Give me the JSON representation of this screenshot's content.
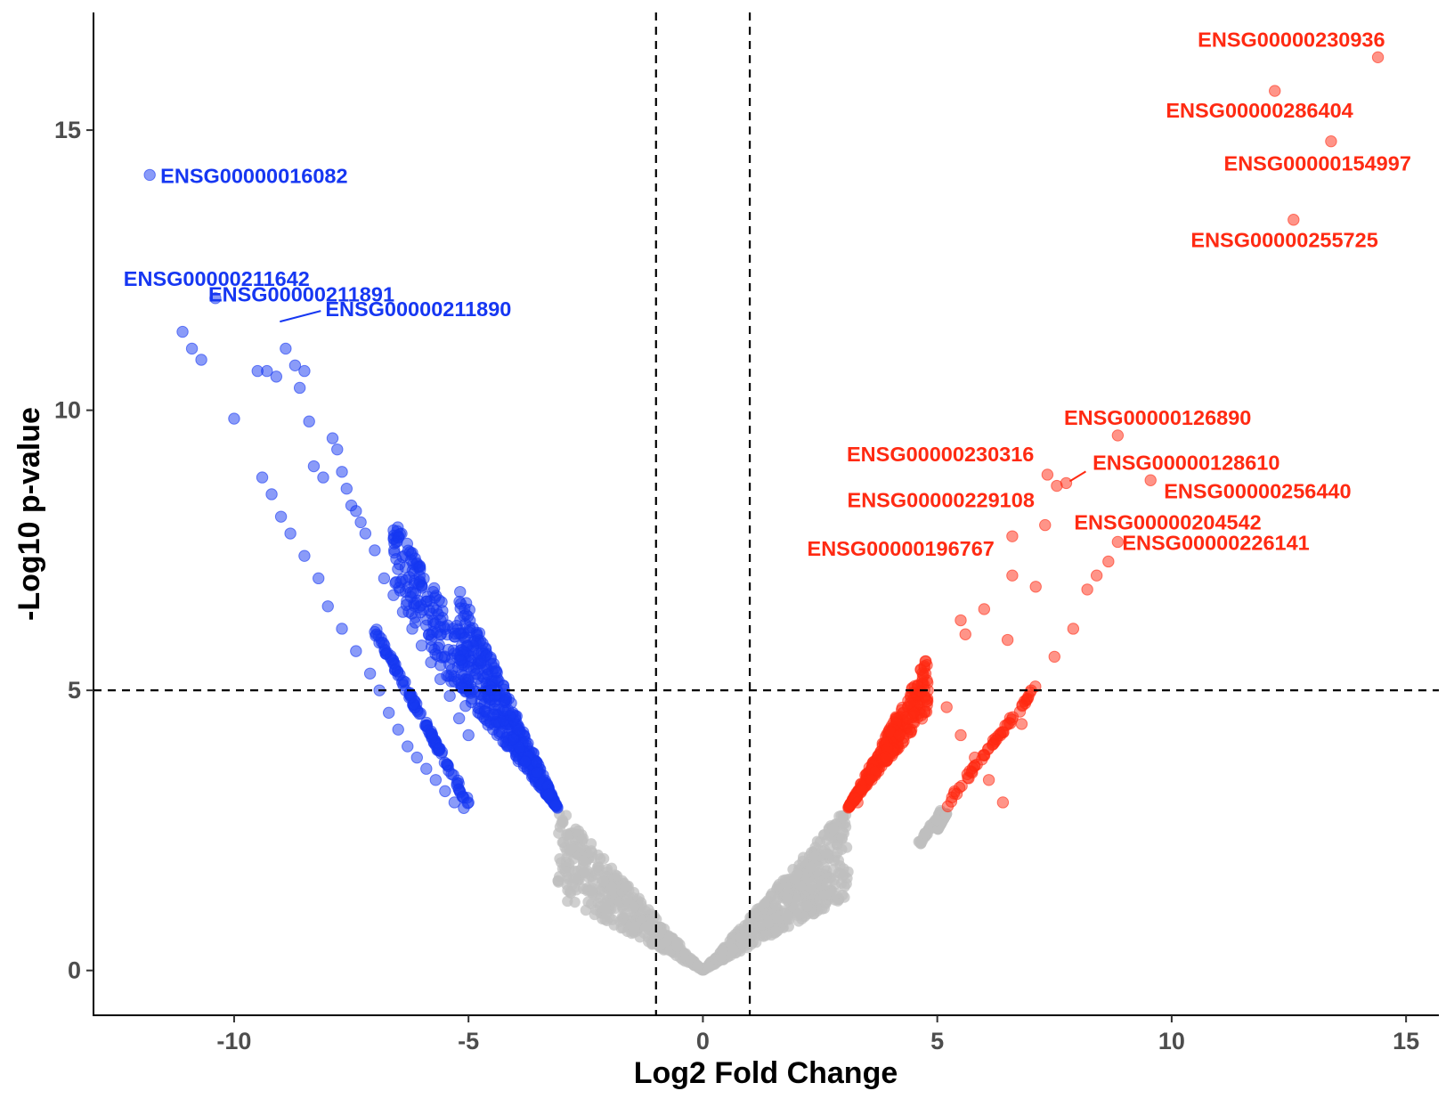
{
  "chart_data": {
    "type": "scatter",
    "title": "",
    "xlabel": "Log2 Fold Change",
    "ylabel": "-Log10 p-value",
    "xlim": [
      -13,
      15.7
    ],
    "ylim": [
      -0.8,
      17.1
    ],
    "xticks": [
      -10,
      -5,
      0,
      5,
      10,
      15
    ],
    "yticks": [
      0,
      5,
      10,
      15
    ],
    "grid": false,
    "legend": "none",
    "thresholds": {
      "x": [
        -1,
        1
      ],
      "y": 5
    },
    "colors": {
      "up": "#ff2a12",
      "down": "#1637f2",
      "ns": "#bfbfbf"
    },
    "point_groups": [
      {
        "group": "down",
        "x": [
          -11.8,
          -11.1,
          -10.9,
          -10.4,
          -10.7,
          -10.0,
          -9.5,
          -9.3,
          -9.1,
          -8.9,
          -8.7,
          -8.6,
          -8.5,
          -8.4,
          -8.3,
          -8.1,
          -7.9,
          -7.8,
          -7.7,
          -7.6,
          -7.5,
          -7.4,
          -7.3,
          -7.2,
          -7.0,
          -6.8,
          -6.6,
          -6.4,
          -6.2,
          -6.0,
          -5.8,
          -5.6,
          -5.4,
          -5.2,
          -5.0,
          -9.4,
          -9.2,
          -9.0,
          -8.8,
          -8.5,
          -8.2,
          -8.0,
          -7.7,
          -7.4,
          -7.1,
          -6.9,
          -6.7,
          -6.5,
          -6.3,
          -6.1,
          -5.9,
          -5.7,
          -5.5,
          -5.3,
          -5.1
        ],
        "y": [
          14.2,
          11.4,
          11.1,
          12.0,
          10.9,
          9.85,
          10.7,
          10.7,
          10.6,
          11.1,
          10.8,
          10.4,
          10.7,
          9.8,
          9.0,
          8.8,
          9.5,
          9.3,
          8.9,
          8.6,
          8.3,
          8.2,
          8.0,
          7.8,
          7.5,
          7.0,
          6.7,
          6.4,
          6.1,
          5.8,
          5.5,
          5.2,
          4.9,
          4.5,
          4.2,
          8.8,
          8.5,
          8.1,
          7.8,
          7.4,
          7.0,
          6.5,
          6.1,
          5.7,
          5.3,
          5.0,
          4.6,
          4.3,
          4.0,
          3.8,
          3.6,
          3.4,
          3.2,
          3.0,
          2.9
        ]
      },
      {
        "group": "up",
        "x": [
          14.4,
          12.2,
          13.4,
          12.6,
          8.85,
          7.35,
          7.55,
          7.75,
          9.55,
          7.3,
          8.85,
          6.6,
          8.65,
          6.6,
          7.1,
          6.0,
          5.5,
          5.6,
          6.5,
          7.5,
          7.9,
          8.2,
          8.4,
          4.8,
          4.5,
          4.2,
          3.9,
          3.6,
          3.3,
          5.2,
          5.5,
          5.8,
          6.1,
          6.4,
          6.8,
          7.0
        ],
        "y": [
          16.3,
          15.7,
          14.8,
          13.4,
          9.55,
          8.85,
          8.65,
          8.7,
          8.75,
          7.95,
          7.65,
          7.75,
          7.3,
          7.05,
          6.85,
          6.45,
          6.25,
          6.0,
          5.9,
          5.6,
          6.1,
          6.8,
          7.05,
          5.0,
          4.6,
          4.2,
          3.8,
          3.4,
          3.0,
          4.7,
          4.2,
          3.8,
          3.4,
          3.0,
          4.4,
          5.0
        ]
      }
    ],
    "labels": [
      {
        "text": "ENSG00000016082",
        "group": "down",
        "x": -11.8,
        "y": 14.2
      },
      {
        "text": "ENSG00000211642",
        "group": "down",
        "x": -10.4,
        "y": 12.0
      },
      {
        "text": "ENSG00000211890",
        "group": "down",
        "x": -9.1,
        "y": 11.55
      },
      {
        "text": "ENSG00000211891",
        "group": "down",
        "x": -11.1,
        "y": 11.4
      },
      {
        "text": "ENSG00000230936",
        "group": "up",
        "x": 14.4,
        "y": 16.3
      },
      {
        "text": "ENSG00000286404",
        "group": "up",
        "x": 12.2,
        "y": 15.7
      },
      {
        "text": "ENSG00000154997",
        "group": "up",
        "x": 13.4,
        "y": 14.8
      },
      {
        "text": "ENSG00000255725",
        "group": "up",
        "x": 12.6,
        "y": 13.4
      },
      {
        "text": "ENSG00000126890",
        "group": "up",
        "x": 8.85,
        "y": 9.55
      },
      {
        "text": "ENSG00000230316",
        "group": "up",
        "x": 7.35,
        "y": 8.85
      },
      {
        "text": "ENSG00000128610",
        "group": "up",
        "x": 7.75,
        "y": 8.7
      },
      {
        "text": "ENSG00000256440",
        "group": "up",
        "x": 9.55,
        "y": 8.75
      },
      {
        "text": "ENSG00000229108",
        "group": "up",
        "x": 7.55,
        "y": 8.65
      },
      {
        "text": "ENSG00000204542",
        "group": "up",
        "x": 7.3,
        "y": 7.95
      },
      {
        "text": "ENSG00000196767",
        "group": "up",
        "x": 6.6,
        "y": 7.75
      },
      {
        "text": "ENSG00000226141",
        "group": "up",
        "x": 8.85,
        "y": 7.65
      }
    ]
  }
}
